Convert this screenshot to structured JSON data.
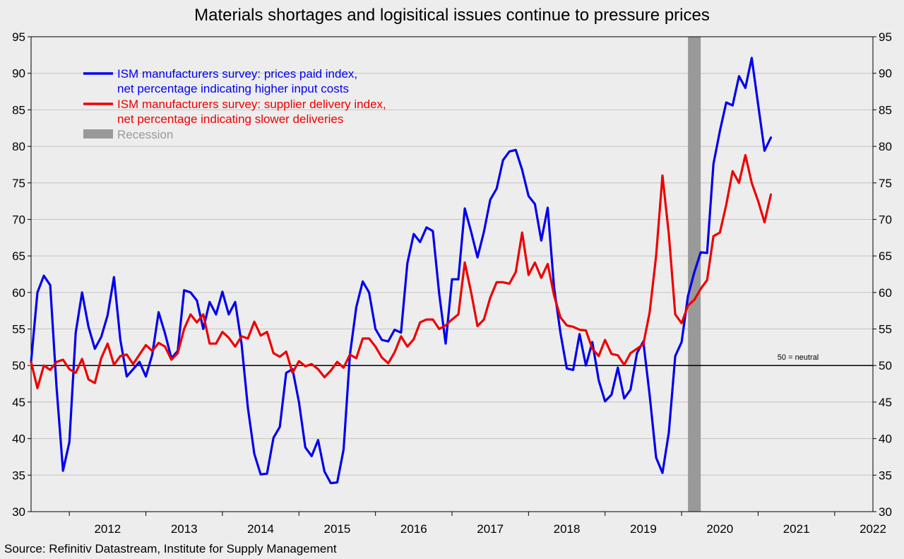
{
  "chart_data": {
    "type": "line",
    "title": "Materials shortages and logisitical issues continue to pressure prices",
    "source": "Source: Refinitiv Datastream, Institute for Supply Management",
    "ylim": [
      30,
      95
    ],
    "yticks": [
      30,
      35,
      40,
      45,
      50,
      55,
      60,
      65,
      70,
      75,
      80,
      85,
      90,
      95
    ],
    "xlim": [
      2011.5,
      2022.5
    ],
    "xtick_labels": [
      "2012",
      "2013",
      "2014",
      "2015",
      "2016",
      "2017",
      "2018",
      "2019",
      "2020",
      "2021",
      "2022"
    ],
    "grid": true,
    "legend_position": "top-left",
    "reference_line": {
      "value": 50,
      "label": "50 = neutral"
    },
    "colors": {
      "prices": "#0000ee",
      "delivery": "#ee0000",
      "recession": "#999999"
    },
    "recession": {
      "name": "Recession",
      "start": "2020-02",
      "end": "2020-04"
    },
    "series": [
      {
        "name": "ISM manufacturers survey: prices paid index, net percentage indicating higher input costs",
        "name_lines": [
          "ISM manufacturers survey: prices paid index,",
          "net percentage indicating higher input costs"
        ],
        "start": "2011-07",
        "values": [
          50.5,
          60,
          62.3,
          61,
          47,
          35.6,
          39.5,
          54.5,
          60,
          55.3,
          52.3,
          53.9,
          56.9,
          62.1,
          53.5,
          48.5,
          49.5,
          50.5,
          48.5,
          51.5,
          57.3,
          54.4,
          51,
          52,
          60.3,
          60,
          58.9,
          55,
          58.7,
          57,
          60.1,
          57,
          58.7,
          53,
          44.2,
          37.9,
          35.1,
          35.2,
          40.1,
          41.6,
          49,
          49.5,
          45,
          38.8,
          37.6,
          39.8,
          35.5,
          33.9,
          34,
          38.5,
          51.5,
          58,
          61.5,
          60,
          55,
          53.5,
          53.3,
          54.9,
          54.5,
          64,
          68,
          66.9,
          68.9,
          68.4,
          59.8,
          53,
          61.8,
          61.8,
          71.5,
          68.3,
          64.8,
          68.3,
          72.7,
          74.2,
          78.1,
          79.3,
          79.5,
          76.8,
          73.2,
          72.1,
          67.1,
          71.6,
          60.7,
          54.5,
          49.6,
          49.4,
          54.3,
          50,
          53.2,
          48,
          45.1,
          46,
          49.7,
          45.5,
          46.7,
          51.7,
          53.3,
          45.9,
          37.4,
          35.3,
          40.8,
          51.3,
          53.2,
          59.5,
          62.8,
          65.5,
          65.4,
          77.6,
          82.1,
          86,
          85.6,
          89.6,
          88,
          92.1,
          85.7,
          79.4,
          81.2
        ]
      },
      {
        "name": "ISM manufacturers survey: supplier delivery index, net percentage indicating slower deliveries",
        "name_lines": [
          "ISM manufacturers survey: supplier delivery index,",
          "net percentage indicating slower deliveries"
        ],
        "start": "2011-07",
        "values": [
          50.5,
          46.9,
          50,
          49.4,
          50.5,
          50.8,
          49.5,
          49,
          50.9,
          48.1,
          47.6,
          51,
          53,
          50.1,
          51.3,
          51.5,
          50.2,
          51.5,
          52.8,
          52,
          53.1,
          52.6,
          50.8,
          51.7,
          55,
          57,
          55.9,
          57,
          53,
          53,
          54.6,
          53.8,
          52.6,
          54,
          53.7,
          56,
          54.1,
          54.6,
          51.7,
          51.2,
          51.9,
          49,
          50.6,
          49.9,
          50.2,
          49.5,
          48.4,
          49.3,
          50.5,
          49.7,
          51.5,
          51,
          53.7,
          53.7,
          52.6,
          51.1,
          50.3,
          51.8,
          54,
          52.6,
          53.6,
          55.9,
          56.3,
          56.3,
          55,
          55.5,
          56.3,
          57,
          64.1,
          60,
          55.4,
          56.3,
          59.3,
          61.4,
          61.4,
          61.2,
          62.8,
          68.2,
          62.4,
          64.1,
          62,
          63.9,
          59.6,
          56.6,
          55.5,
          55.3,
          54.9,
          54.8,
          52.3,
          51.3,
          53.5,
          51.6,
          51.4,
          50.1,
          51.7,
          52.3,
          52.9,
          57.3,
          65,
          76,
          68,
          57,
          55.8,
          58.2,
          59,
          60.5,
          61.7,
          67.7,
          68.2,
          72,
          76.6,
          75,
          78.8,
          75,
          72.5,
          69.6,
          73.4
        ]
      }
    ]
  }
}
